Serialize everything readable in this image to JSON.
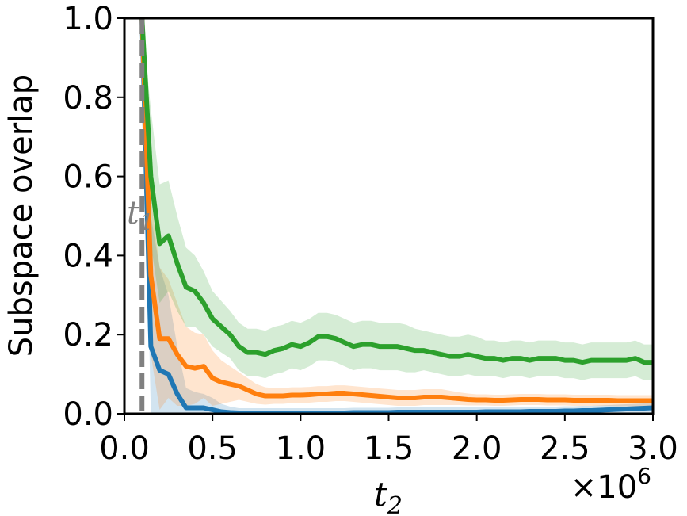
{
  "chart_data": {
    "type": "line",
    "title": "",
    "xlabel": "t2",
    "ylabel": "Subspace overlap",
    "x_multiplier_label": "×10^6",
    "xlim": [
      0,
      3.0
    ],
    "ylim": [
      0,
      1.0
    ],
    "xticks": [
      "0.0",
      "0.5",
      "1.0",
      "1.5",
      "2.0",
      "2.5",
      "3.0"
    ],
    "yticks": [
      "0.0",
      "0.2",
      "0.4",
      "0.6",
      "0.8",
      "1.0"
    ],
    "grid": false,
    "legend": "none",
    "vline": {
      "x": 0.1,
      "label": "t1",
      "color": "#808080",
      "style": "dashed"
    },
    "x": [
      0.1,
      0.15,
      0.2,
      0.25,
      0.3,
      0.35,
      0.4,
      0.45,
      0.5,
      0.55,
      0.6,
      0.65,
      0.7,
      0.75,
      0.8,
      0.85,
      0.9,
      0.95,
      1.0,
      1.05,
      1.1,
      1.15,
      1.2,
      1.25,
      1.3,
      1.35,
      1.4,
      1.45,
      1.5,
      1.55,
      1.6,
      1.65,
      1.7,
      1.75,
      1.8,
      1.85,
      1.9,
      1.95,
      2.0,
      2.05,
      2.1,
      2.15,
      2.2,
      2.25,
      2.3,
      2.35,
      2.4,
      2.45,
      2.5,
      2.55,
      2.6,
      2.65,
      2.7,
      2.75,
      2.8,
      2.85,
      2.9,
      2.95,
      3.0
    ],
    "series": [
      {
        "color": "#1f77b4",
        "values": [
          1.0,
          0.17,
          0.11,
          0.1,
          0.05,
          0.015,
          0.015,
          0.015,
          0.01,
          0.005,
          0.003,
          0.002,
          0.002,
          0.002,
          0.002,
          0.002,
          0.002,
          0.002,
          0.002,
          0.002,
          0.002,
          0.002,
          0.002,
          0.002,
          0.003,
          0.003,
          0.003,
          0.003,
          0.003,
          0.004,
          0.004,
          0.004,
          0.004,
          0.004,
          0.004,
          0.004,
          0.004,
          0.004,
          0.004,
          0.005,
          0.005,
          0.005,
          0.005,
          0.005,
          0.006,
          0.006,
          0.006,
          0.006,
          0.007,
          0.007,
          0.008,
          0.008,
          0.009,
          0.01,
          0.011,
          0.012,
          0.013,
          0.014,
          0.015
        ],
        "band": [
          0.0,
          0.33,
          0.26,
          0.2,
          0.12,
          0.05,
          0.04,
          0.035,
          0.03,
          0.02,
          0.015,
          0.012,
          0.012,
          0.012,
          0.012,
          0.012,
          0.012,
          0.012,
          0.012,
          0.012,
          0.012,
          0.012,
          0.012,
          0.012,
          0.012,
          0.012,
          0.012,
          0.012,
          0.012,
          0.012,
          0.012,
          0.012,
          0.012,
          0.012,
          0.012,
          0.012,
          0.012,
          0.012,
          0.012,
          0.012,
          0.012,
          0.012,
          0.012,
          0.012,
          0.012,
          0.012,
          0.012,
          0.012,
          0.012,
          0.012,
          0.012,
          0.012,
          0.012,
          0.012,
          0.012,
          0.012,
          0.012,
          0.012,
          0.012
        ]
      },
      {
        "color": "#ff7f0e",
        "values": [
          1.0,
          0.35,
          0.19,
          0.19,
          0.15,
          0.12,
          0.115,
          0.12,
          0.09,
          0.08,
          0.075,
          0.07,
          0.06,
          0.05,
          0.045,
          0.045,
          0.045,
          0.047,
          0.047,
          0.048,
          0.05,
          0.05,
          0.052,
          0.052,
          0.05,
          0.048,
          0.046,
          0.044,
          0.042,
          0.04,
          0.04,
          0.04,
          0.042,
          0.042,
          0.042,
          0.04,
          0.038,
          0.036,
          0.035,
          0.035,
          0.034,
          0.034,
          0.035,
          0.036,
          0.036,
          0.036,
          0.035,
          0.035,
          0.035,
          0.034,
          0.034,
          0.034,
          0.034,
          0.034,
          0.033,
          0.033,
          0.033,
          0.033,
          0.033
        ],
        "band": [
          0.0,
          0.2,
          0.18,
          0.15,
          0.13,
          0.1,
          0.09,
          0.08,
          0.07,
          0.055,
          0.045,
          0.035,
          0.03,
          0.025,
          0.022,
          0.02,
          0.02,
          0.02,
          0.02,
          0.02,
          0.02,
          0.02,
          0.02,
          0.02,
          0.02,
          0.02,
          0.02,
          0.02,
          0.02,
          0.02,
          0.02,
          0.02,
          0.02,
          0.02,
          0.02,
          0.018,
          0.016,
          0.015,
          0.014,
          0.014,
          0.014,
          0.014,
          0.014,
          0.014,
          0.014,
          0.014,
          0.014,
          0.014,
          0.014,
          0.014,
          0.014,
          0.014,
          0.014,
          0.014,
          0.014,
          0.014,
          0.014,
          0.014,
          0.014
        ]
      },
      {
        "color": "#2ca02c",
        "values": [
          1.0,
          0.6,
          0.43,
          0.45,
          0.38,
          0.32,
          0.31,
          0.28,
          0.24,
          0.22,
          0.2,
          0.17,
          0.155,
          0.155,
          0.15,
          0.16,
          0.165,
          0.175,
          0.17,
          0.18,
          0.195,
          0.195,
          0.19,
          0.18,
          0.17,
          0.175,
          0.175,
          0.17,
          0.17,
          0.17,
          0.165,
          0.16,
          0.16,
          0.155,
          0.15,
          0.145,
          0.145,
          0.15,
          0.145,
          0.14,
          0.14,
          0.135,
          0.14,
          0.14,
          0.135,
          0.14,
          0.14,
          0.14,
          0.135,
          0.135,
          0.13,
          0.135,
          0.135,
          0.135,
          0.135,
          0.135,
          0.14,
          0.13,
          0.13
        ],
        "band": [
          0.0,
          0.17,
          0.15,
          0.14,
          0.12,
          0.1,
          0.09,
          0.08,
          0.07,
          0.065,
          0.06,
          0.06,
          0.06,
          0.06,
          0.06,
          0.06,
          0.06,
          0.06,
          0.06,
          0.06,
          0.06,
          0.06,
          0.06,
          0.06,
          0.06,
          0.06,
          0.06,
          0.06,
          0.06,
          0.06,
          0.06,
          0.055,
          0.05,
          0.05,
          0.05,
          0.05,
          0.05,
          0.05,
          0.05,
          0.045,
          0.045,
          0.045,
          0.045,
          0.045,
          0.045,
          0.045,
          0.045,
          0.045,
          0.045,
          0.045,
          0.045,
          0.045,
          0.045,
          0.045,
          0.045,
          0.045,
          0.045,
          0.045,
          0.045
        ]
      }
    ]
  }
}
